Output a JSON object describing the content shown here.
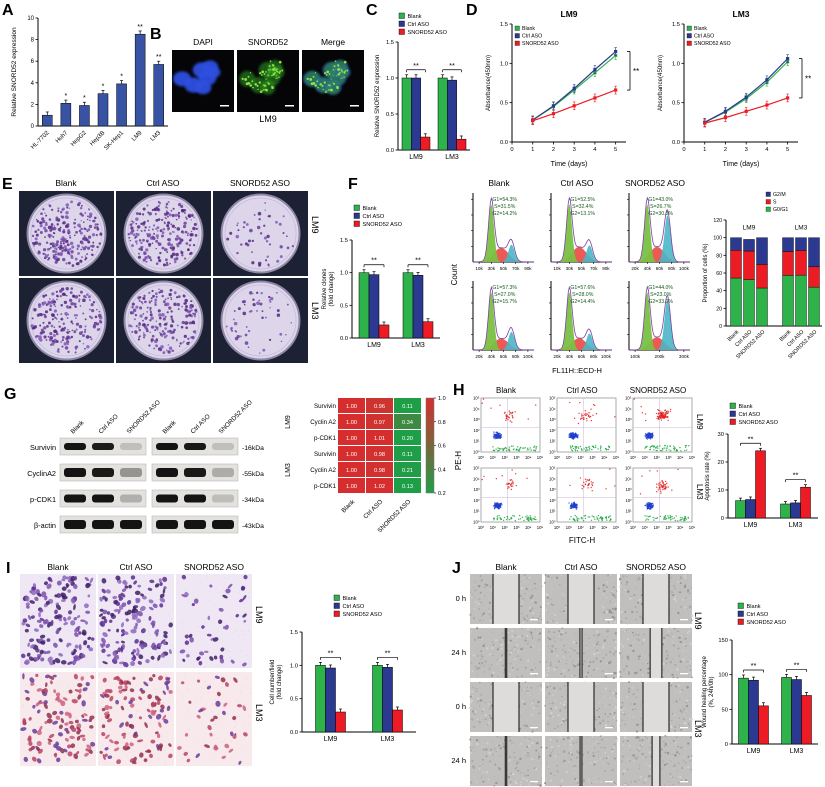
{
  "figure": {
    "panel_letters": {
      "a": "A",
      "b": "B",
      "c": "C",
      "d": "D",
      "e": "E",
      "f": "F",
      "g": "G",
      "h": "H",
      "i": "I",
      "j": "J"
    }
  },
  "legend_labels": [
    "Blank",
    "Ctrl ASO",
    "SNORD52 ASO"
  ],
  "series_colors": [
    "#2db34a",
    "#2b3990",
    "#ed1c24"
  ],
  "panel_b": {
    "image_labels": [
      "DAPI",
      "SNORD52",
      "Merge"
    ],
    "cell_line": "LM9"
  },
  "panel_e": {
    "col_labels": [
      "Blank",
      "Ctrl ASO",
      "SNORD52 ASO"
    ],
    "row_labels": [
      "LM9",
      "LM3"
    ]
  },
  "panel_f": {
    "col_labels": [
      "Blank",
      "Ctrl ASO",
      "SNORD52 ASO"
    ],
    "row_labels": [
      "LM9",
      "LM3"
    ],
    "xlabel": "FL11H::ECD-H",
    "ylabel": "Count"
  },
  "panel_g": {
    "proteins": [
      "Survivin",
      "CyclinA2",
      "p-CDK1",
      "β-actin"
    ],
    "kda": [
      "-16kDa",
      "-55kDa",
      "-34kDa",
      "-43kDa"
    ],
    "lane_labels": [
      "Blank",
      "Ctrl ASO",
      "SNORD52 ASO",
      "Blank",
      "Ctrl ASO",
      "SNORD52 ASO"
    ]
  },
  "panel_h": {
    "col_labels": [
      "Blank",
      "Ctrl ASO",
      "SNORD52 ASO"
    ],
    "row_labels": [
      "LM9",
      "LM3"
    ],
    "xlabel": "FITC-H",
    "ylabel": "PE-H"
  },
  "panel_i": {
    "col_labels": [
      "Blank",
      "Ctrl ASO",
      "SNORD52 ASO"
    ],
    "row_labels": [
      "LM9",
      "LM3"
    ]
  },
  "panel_j": {
    "col_labels": [
      "Blank",
      "Ctrl ASO",
      "SNORD52 ASO"
    ],
    "time_labels": [
      "0 h",
      "24 h",
      "0 h",
      "24 h"
    ],
    "row_labels": [
      "LM9",
      "LM3"
    ]
  },
  "chart_data": [
    {
      "id": "a_bar",
      "type": "bar",
      "ylabel": "Relative SNORD52 expression",
      "ylim": [
        0,
        10
      ],
      "yticks": [
        0,
        2,
        4,
        6,
        8,
        10
      ],
      "ydec": 0,
      "categories": [
        "HL-7702",
        "Huh7",
        "HepG2",
        "Hep3B",
        "SK-Hep1",
        "LM9",
        "LM3"
      ],
      "values": [
        1.0,
        2.1,
        1.9,
        3.0,
        3.9,
        8.5,
        5.7
      ],
      "sig": [
        "",
        "*",
        "*",
        "*",
        "*",
        "**",
        "**"
      ],
      "bar_color": "#3953a4"
    },
    {
      "id": "c_bar",
      "type": "grouped_bar",
      "ylabel": "Relative SNORD52 expression",
      "ylim": [
        0,
        1.5
      ],
      "yticks": [
        0,
        0.5,
        1,
        1.5
      ],
      "ydec": 1,
      "categories": [
        "LM9",
        "LM3"
      ],
      "series": [
        {
          "name": "Blank",
          "values": [
            1.0,
            1.0
          ]
        },
        {
          "name": "Ctrl ASO",
          "values": [
            1.0,
            0.97
          ]
        },
        {
          "name": "SNORD52 ASO",
          "values": [
            0.18,
            0.15
          ]
        }
      ],
      "sig": [
        "**",
        "**"
      ]
    },
    {
      "id": "d_lm9",
      "type": "line",
      "title": "LM9",
      "xlabel": "Time (days)",
      "ylabel": "Absorbance(450nm)",
      "x": [
        1,
        2,
        3,
        4,
        5
      ],
      "xticks": [
        0,
        1,
        2,
        3,
        4,
        5
      ],
      "ylim": [
        0,
        1.5
      ],
      "yticks": [
        0,
        0.5,
        1,
        1.5
      ],
      "ydec": 1,
      "series": [
        {
          "name": "Blank",
          "values": [
            0.28,
            0.45,
            0.66,
            0.88,
            1.1
          ]
        },
        {
          "name": "Ctrl ASO",
          "values": [
            0.28,
            0.46,
            0.68,
            0.92,
            1.15
          ]
        },
        {
          "name": "SNORD52 ASO",
          "values": [
            0.27,
            0.36,
            0.46,
            0.56,
            0.66
          ]
        }
      ],
      "sig": "**"
    },
    {
      "id": "d_lm3",
      "type": "line",
      "title": "LM3",
      "xlabel": "Time (days)",
      "ylabel": "Absorbance(450nm)",
      "x": [
        1,
        2,
        3,
        4,
        5
      ],
      "xticks": [
        0,
        1,
        2,
        3,
        4,
        5
      ],
      "ylim": [
        0,
        1.5
      ],
      "yticks": [
        0,
        0.5,
        1,
        1.5
      ],
      "ydec": 1,
      "series": [
        {
          "name": "Blank",
          "values": [
            0.25,
            0.38,
            0.55,
            0.76,
            1.02
          ]
        },
        {
          "name": "Ctrl ASO",
          "values": [
            0.25,
            0.39,
            0.57,
            0.79,
            1.06
          ]
        },
        {
          "name": "SNORD52 ASO",
          "values": [
            0.24,
            0.31,
            0.39,
            0.47,
            0.56
          ]
        }
      ],
      "sig": "**"
    },
    {
      "id": "e_bar",
      "type": "grouped_bar",
      "ylabel": "Relative clones",
      "ylabel2": "(fold change)",
      "ylim": [
        0,
        1.5
      ],
      "yticks": [
        0,
        0.5,
        1,
        1.5
      ],
      "ydec": 1,
      "categories": [
        "LM9",
        "LM3"
      ],
      "series": [
        {
          "name": "Blank",
          "values": [
            1.0,
            1.0
          ]
        },
        {
          "name": "Ctrl ASO",
          "values": [
            0.97,
            0.96
          ]
        },
        {
          "name": "SNORD52 ASO",
          "values": [
            0.2,
            0.25
          ]
        }
      ],
      "sig": [
        "**",
        "**"
      ]
    },
    {
      "id": "f_flow",
      "type": "flow_histogram_grid",
      "ylabel": "Count",
      "xlabel": "FL11H::ECD-H",
      "rows": [
        "LM9",
        "LM3"
      ],
      "cols": [
        "Blank",
        "Ctrl ASO",
        "SNORD52 ASO"
      ],
      "plots": [
        [
          {
            "G1": "54.3",
            "S": "31.5",
            "G2": "14.2",
            "xticks": [
              "10k",
              "30k",
              "50k",
              "70k",
              "90k"
            ]
          },
          {
            "G1": "52.5",
            "S": "32.4",
            "G2": "13.1",
            "xticks": [
              "10k",
              "30k",
              "50k",
              "70k",
              "90k"
            ]
          },
          {
            "G1": "43.0",
            "S": "26.7",
            "G2": "30.3",
            "xticks": [
              "20k",
              "40k",
              "60k",
              "80k",
              "100k"
            ]
          }
        ],
        [
          {
            "G1": "57.3",
            "S": "27.0",
            "G2": "15.7",
            "xticks": [
              "20k",
              "40k",
              "60k",
              "80k",
              "100k"
            ]
          },
          {
            "G1": "57.6",
            "S": "28.0",
            "G2": "14.4",
            "xticks": [
              "20k",
              "40k",
              "60k",
              "80k",
              "100k"
            ]
          },
          {
            "G1": "44.0",
            "S": "23.0",
            "G2": "33.0",
            "xticks": [
              "100k",
              "200k",
              "300k"
            ]
          }
        ]
      ]
    },
    {
      "id": "f_bar",
      "type": "stacked_bar",
      "ylabel": "Proportion of cells (%)",
      "ylim": [
        0,
        120
      ],
      "yticks": [
        0,
        20,
        40,
        60,
        80,
        100,
        120
      ],
      "ydec": 0,
      "groups": [
        "LM9",
        "LM3"
      ],
      "bar_labels": [
        "Blank",
        "Ctrl ASO",
        "SNORD52 ASO",
        "Blank",
        "Ctrl ASO",
        "SNORD52 ASO"
      ],
      "series": [
        {
          "name": "G2/M",
          "color": "#2b3990",
          "values": [
            14.2,
            13.1,
            30.3,
            15.7,
            14.4,
            33.0
          ]
        },
        {
          "name": "S",
          "color": "#ed1c24",
          "values": [
            31.5,
            32.4,
            26.7,
            27.0,
            28.0,
            23.0
          ]
        },
        {
          "name": "G0/G1",
          "color": "#2db34a",
          "values": [
            54.3,
            52.5,
            43.0,
            57.3,
            57.6,
            44.0
          ]
        }
      ]
    },
    {
      "id": "g_heatmap",
      "type": "heatmap",
      "row_groups": [
        "LM9",
        "LM3"
      ],
      "row_labels": [
        "Survivin",
        "Cyclin A2",
        "p-CDK1",
        "Survivin",
        "Cyclin A2",
        "p-CDK1"
      ],
      "col_labels": [
        "Blank",
        "Ctrl ASO",
        "SNORD52 ASO"
      ],
      "values": [
        [
          1.0,
          0.96,
          0.11
        ],
        [
          1.0,
          0.97,
          0.34
        ],
        [
          1.0,
          1.01,
          0.2
        ],
        [
          1.0,
          0.98,
          0.11
        ],
        [
          1.0,
          0.98,
          0.21
        ],
        [
          1.0,
          1.02,
          0.13
        ]
      ],
      "scale": [
        0.2,
        1.0
      ],
      "colorbar_ticks": [
        1.0,
        0.8,
        0.6,
        0.4,
        0.2
      ]
    },
    {
      "id": "h_scatter",
      "type": "scatter_grid",
      "xlabel": "FITC-H",
      "ylabel": "PE-H",
      "rows": [
        "LM9",
        "LM3"
      ],
      "cols": [
        "Blank",
        "Ctrl ASO",
        "SNORD52 ASO"
      ],
      "ticks": [
        "10⁰",
        "10¹",
        "10²",
        "10³",
        "10⁴",
        "10⁵"
      ]
    },
    {
      "id": "h_bar",
      "type": "grouped_bar",
      "ylabel": "Apoptosis rate (%)",
      "ylim": [
        0,
        30
      ],
      "yticks": [
        0,
        10,
        20,
        30
      ],
      "ydec": 0,
      "categories": [
        "LM9",
        "LM3"
      ],
      "series": [
        {
          "name": "Blank",
          "values": [
            6.2,
            5.0
          ]
        },
        {
          "name": "Ctrl ASO",
          "values": [
            6.6,
            5.4
          ]
        },
        {
          "name": "SNORD52 ASO",
          "values": [
            24.0,
            11.0
          ]
        }
      ],
      "sig": [
        "**",
        "**"
      ]
    },
    {
      "id": "i_bar",
      "type": "grouped_bar",
      "ylabel": "Cell number/field",
      "ylabel2": "(fold change)",
      "ylim": [
        0,
        1.5
      ],
      "yticks": [
        0,
        0.5,
        1,
        1.5
      ],
      "ydec": 1,
      "categories": [
        "LM9",
        "LM3"
      ],
      "series": [
        {
          "name": "Blank",
          "values": [
            1.0,
            1.0
          ]
        },
        {
          "name": "Ctrl ASO",
          "values": [
            0.96,
            0.97
          ]
        },
        {
          "name": "SNORD52 ASO",
          "values": [
            0.3,
            0.33
          ]
        }
      ],
      "sig": [
        "**",
        "**"
      ]
    },
    {
      "id": "j_bar",
      "type": "grouped_bar",
      "ylabel": "Wound healing percentage",
      "ylabel2": "(%, 24h/0h)",
      "ylim": [
        0,
        150
      ],
      "yticks": [
        0,
        50,
        100,
        150
      ],
      "ydec": 0,
      "categories": [
        "LM9",
        "LM3"
      ],
      "series": [
        {
          "name": "Blank",
          "values": [
            95,
            96
          ]
        },
        {
          "name": "Ctrl ASO",
          "values": [
            92,
            93
          ]
        },
        {
          "name": "SNORD52 ASO",
          "values": [
            55,
            70
          ]
        }
      ],
      "sig": [
        "**",
        "**"
      ]
    }
  ]
}
